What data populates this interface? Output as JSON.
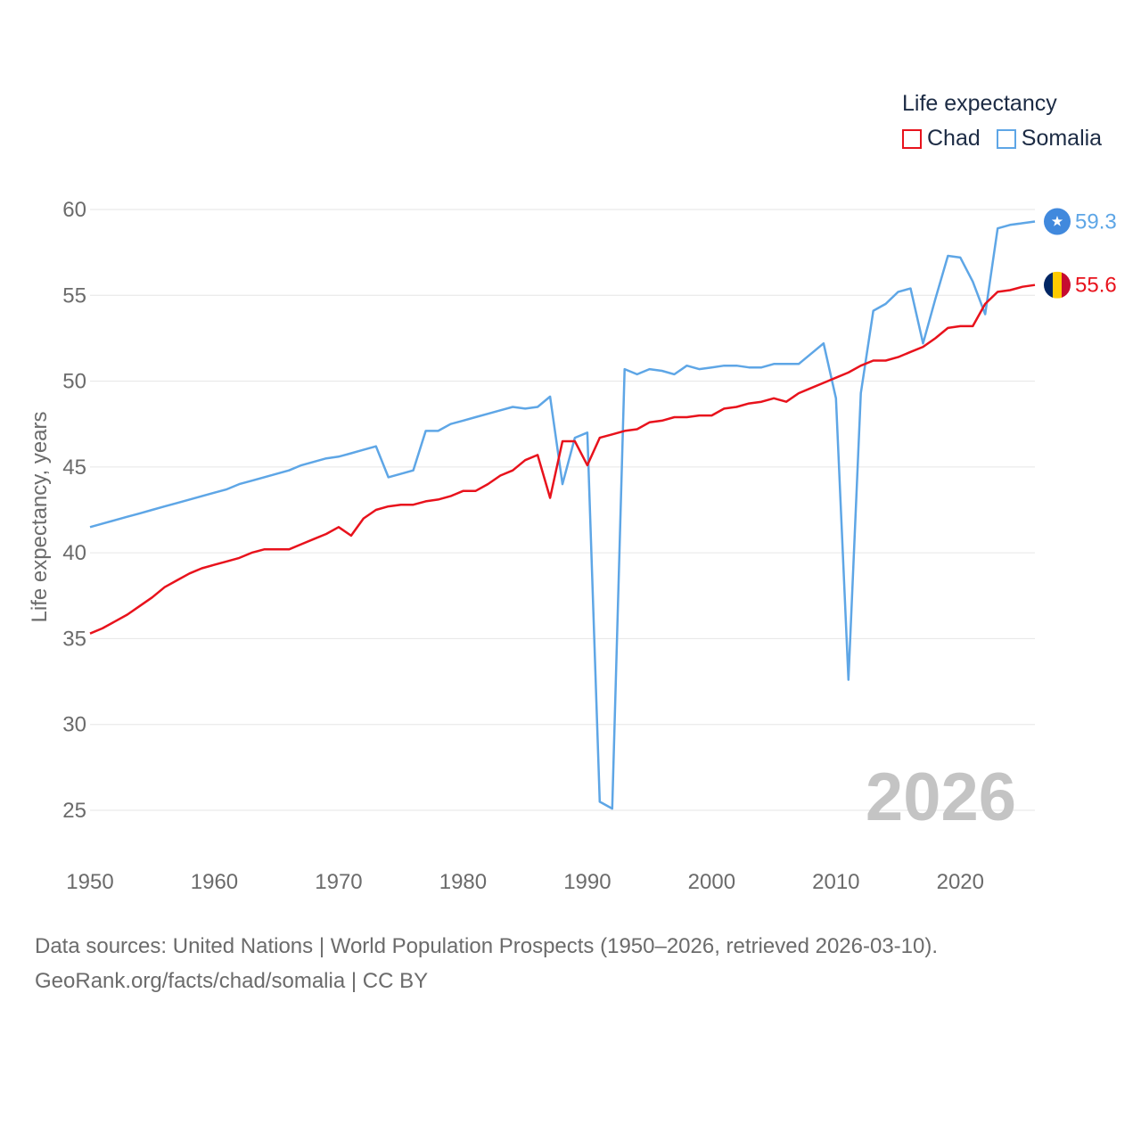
{
  "legend": {
    "title": "Life expectancy",
    "items": [
      "Chad",
      "Somalia"
    ]
  },
  "footer": {
    "line1": "Data sources: United Nations | World Population Prospects (1950–2026, retrieved 2026-03-10).",
    "line2": "GeoRank.org/facts/chad/somalia | CC BY"
  },
  "colors": {
    "Chad": "#e8121c",
    "Somalia": "#5ea6e6",
    "grid": "#e6e6e6",
    "axis_text": "#6b6b6b",
    "year_label": "#c4c4c4",
    "somalia_flag": "#4189dd",
    "chad_flag_blue": "#002664",
    "chad_flag_yellow": "#fecb00",
    "chad_flag_red": "#c60c30"
  },
  "chart_data": {
    "type": "line",
    "title": "Life expectancy",
    "xlabel": "",
    "ylabel": "Life expectancy, years",
    "xlim": [
      1950,
      2026
    ],
    "ylim": [
      25,
      60
    ],
    "x_ticks": [
      1950,
      1960,
      1970,
      1980,
      1990,
      2000,
      2010,
      2020
    ],
    "y_ticks": [
      25,
      30,
      35,
      40,
      45,
      50,
      55,
      60
    ],
    "year_label": "2026",
    "x": [
      1950,
      1951,
      1952,
      1953,
      1954,
      1955,
      1956,
      1957,
      1958,
      1959,
      1960,
      1961,
      1962,
      1963,
      1964,
      1965,
      1966,
      1967,
      1968,
      1969,
      1970,
      1971,
      1972,
      1973,
      1974,
      1975,
      1976,
      1977,
      1978,
      1979,
      1980,
      1981,
      1982,
      1983,
      1984,
      1985,
      1986,
      1987,
      1988,
      1989,
      1990,
      1991,
      1992,
      1993,
      1994,
      1995,
      1996,
      1997,
      1998,
      1999,
      2000,
      2001,
      2002,
      2003,
      2004,
      2005,
      2006,
      2007,
      2008,
      2009,
      2010,
      2011,
      2012,
      2013,
      2014,
      2015,
      2016,
      2017,
      2018,
      2019,
      2020,
      2021,
      2022,
      2023,
      2024,
      2025,
      2026
    ],
    "series": [
      {
        "name": "Chad",
        "end_label": "55.6",
        "values": [
          35.3,
          35.6,
          36.0,
          36.4,
          36.9,
          37.4,
          38.0,
          38.4,
          38.8,
          39.1,
          39.3,
          39.5,
          39.7,
          40.0,
          40.2,
          40.2,
          40.2,
          40.5,
          40.8,
          41.1,
          41.5,
          41.0,
          42.0,
          42.5,
          42.7,
          42.8,
          42.8,
          43.0,
          43.1,
          43.3,
          43.6,
          43.6,
          44.0,
          44.5,
          44.8,
          45.4,
          45.7,
          43.2,
          46.5,
          46.5,
          45.1,
          46.7,
          46.9,
          47.1,
          47.2,
          47.6,
          47.7,
          47.9,
          47.9,
          48.0,
          48.0,
          48.4,
          48.5,
          48.7,
          48.8,
          49.0,
          48.8,
          49.3,
          49.6,
          49.9,
          50.2,
          50.5,
          50.9,
          51.2,
          51.2,
          51.4,
          51.7,
          52.0,
          52.5,
          53.1,
          53.2,
          53.2,
          54.5,
          55.2,
          55.3,
          55.5,
          55.6
        ]
      },
      {
        "name": "Somalia",
        "end_label": "59.3",
        "values": [
          41.5,
          41.7,
          41.9,
          42.1,
          42.3,
          42.5,
          42.7,
          42.9,
          43.1,
          43.3,
          43.5,
          43.7,
          44.0,
          44.2,
          44.4,
          44.6,
          44.8,
          45.1,
          45.3,
          45.5,
          45.6,
          45.8,
          46.0,
          46.2,
          44.4,
          44.6,
          44.8,
          47.1,
          47.1,
          47.5,
          47.7,
          47.9,
          48.1,
          48.3,
          48.5,
          48.4,
          48.5,
          49.1,
          44.0,
          46.7,
          47.0,
          25.5,
          25.1,
          50.7,
          50.4,
          50.7,
          50.6,
          50.4,
          50.9,
          50.7,
          50.8,
          50.9,
          50.9,
          50.8,
          50.8,
          51.0,
          51.0,
          51.0,
          51.6,
          52.2,
          49.0,
          32.6,
          49.3,
          54.1,
          54.5,
          55.2,
          55.4,
          52.2,
          54.8,
          57.3,
          57.2,
          55.8,
          53.9,
          58.9,
          59.1,
          59.2,
          59.3
        ]
      }
    ]
  }
}
